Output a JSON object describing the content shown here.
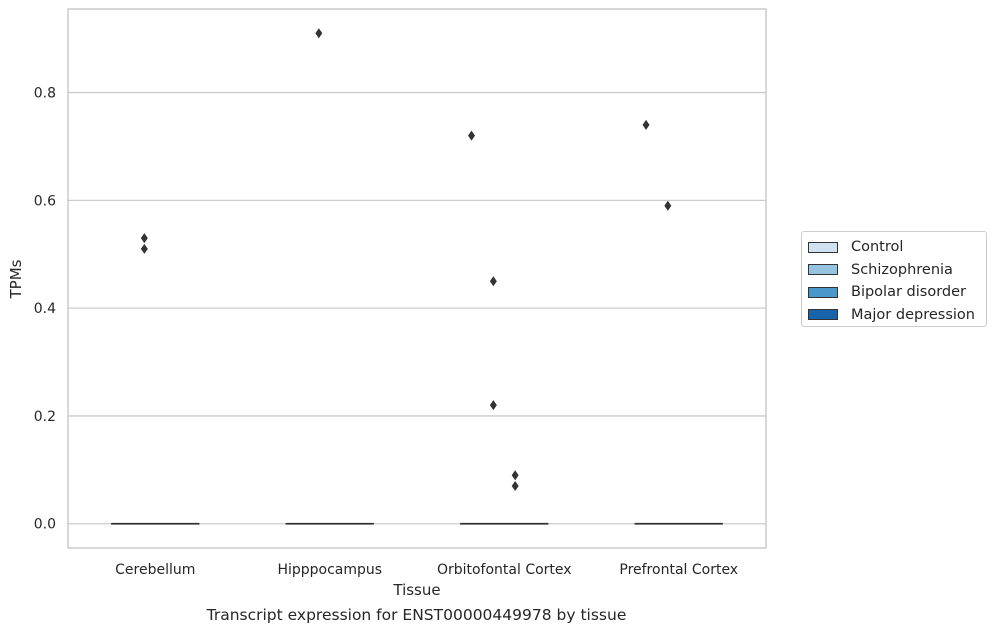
{
  "chart_data": {
    "type": "box",
    "xlabel": "Tissue",
    "ylabel": "TPMs",
    "caption": "Transcript expression for ENST00000449978 by tissue",
    "categories": [
      "Cerebellum",
      "Hipppocampus",
      "Orbitofontal Cortex",
      "Prefrontal Cortex"
    ],
    "ylim": [
      -0.045,
      0.955
    ],
    "yticks": [
      0.0,
      0.2,
      0.4,
      0.6,
      0.8
    ],
    "ytick_labels": [
      "0.0",
      "0.2",
      "0.4",
      "0.6",
      "0.8"
    ],
    "grid": "horizontal",
    "legend_position": "right-outside",
    "series": [
      {
        "name": "Control",
        "color": "#d0e1f2",
        "boxes": [
          {
            "q1": 0,
            "median": 0,
            "q3": 0,
            "whisker_low": 0,
            "whisker_high": 0
          },
          {
            "q1": 0,
            "median": 0,
            "q3": 0,
            "whisker_low": 0,
            "whisker_high": 0
          },
          {
            "q1": 0,
            "median": 0,
            "q3": 0,
            "whisker_low": 0,
            "whisker_high": 0
          },
          {
            "q1": 0,
            "median": 0,
            "q3": 0,
            "whisker_low": 0,
            "whisker_high": 0
          }
        ],
        "outliers": [
          [],
          [],
          [
            0.72
          ],
          [
            0.74
          ]
        ]
      },
      {
        "name": "Schizophrenia",
        "color": "#94c4df",
        "boxes": [
          {
            "q1": 0,
            "median": 0,
            "q3": 0,
            "whisker_low": 0,
            "whisker_high": 0
          },
          {
            "q1": 0,
            "median": 0,
            "q3": 0,
            "whisker_low": 0,
            "whisker_high": 0
          },
          {
            "q1": 0,
            "median": 0,
            "q3": 0,
            "whisker_low": 0,
            "whisker_high": 0
          },
          {
            "q1": 0,
            "median": 0,
            "q3": 0,
            "whisker_low": 0,
            "whisker_high": 0
          }
        ],
        "outliers": [
          [
            0.53,
            0.51
          ],
          [
            0.91
          ],
          [
            0.45,
            0.22
          ],
          [
            0.59
          ]
        ]
      },
      {
        "name": "Bipolar disorder",
        "color": "#4a98c9",
        "boxes": [
          {
            "q1": 0,
            "median": 0,
            "q3": 0,
            "whisker_low": 0,
            "whisker_high": 0
          },
          {
            "q1": 0,
            "median": 0,
            "q3": 0,
            "whisker_low": 0,
            "whisker_high": 0
          },
          {
            "q1": 0,
            "median": 0,
            "q3": 0,
            "whisker_low": 0,
            "whisker_high": 0
          },
          {
            "q1": 0,
            "median": 0,
            "q3": 0,
            "whisker_low": 0,
            "whisker_high": 0
          }
        ],
        "outliers": [
          [],
          [],
          [
            0.09,
            0.07
          ],
          []
        ]
      },
      {
        "name": "Major depression",
        "color": "#1764ab",
        "boxes": [
          {
            "q1": 0,
            "median": 0,
            "q3": 0,
            "whisker_low": 0,
            "whisker_high": 0
          },
          {
            "q1": 0,
            "median": 0,
            "q3": 0,
            "whisker_low": 0,
            "whisker_high": 0
          },
          {
            "q1": 0,
            "median": 0,
            "q3": 0,
            "whisker_low": 0,
            "whisker_high": 0
          },
          {
            "q1": 0,
            "median": 0,
            "q3": 0,
            "whisker_low": 0,
            "whisker_high": 0
          }
        ],
        "outliers": [
          [],
          [],
          [],
          []
        ]
      }
    ]
  },
  "colors": {
    "grid": "#cccccc",
    "frame": "#cccccc",
    "marker": "#333333",
    "text": "#262626"
  }
}
